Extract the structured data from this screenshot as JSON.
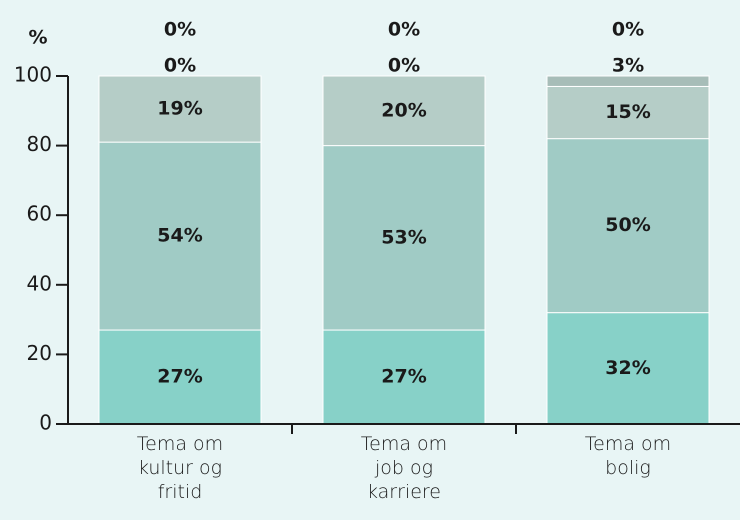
{
  "chart_data": {
    "type": "stacked_bar",
    "y_label": "%",
    "categories": [
      "Tema om\nkultur og\nfritid",
      "Tema om\njob og\nkarriere",
      "Tema om\nbolig"
    ],
    "series": [
      {
        "color": "#87d1c8",
        "values": [
          27,
          27,
          32
        ],
        "value_labels": [
          "27%",
          "27%",
          "32%"
        ]
      },
      {
        "color": "#a0cbc5",
        "values": [
          54,
          53,
          50
        ],
        "value_labels": [
          "54%",
          "53%",
          "50%"
        ]
      },
      {
        "color": "#b5cdc7",
        "values": [
          19,
          20,
          15
        ],
        "value_labels": [
          "19%",
          "20%",
          "15%"
        ]
      },
      {
        "color": "#a7bdb8",
        "values": [
          0,
          0,
          3
        ],
        "value_labels": [
          "0%",
          "0%",
          "3%"
        ]
      },
      {
        "color": "#9fb3ae",
        "values": [
          0,
          0,
          0
        ],
        "value_labels": [
          "0%",
          "0%",
          "0%"
        ]
      }
    ],
    "ylim": [
      0,
      100
    ],
    "yticks": [
      0,
      20,
      40,
      60,
      80,
      100
    ]
  }
}
